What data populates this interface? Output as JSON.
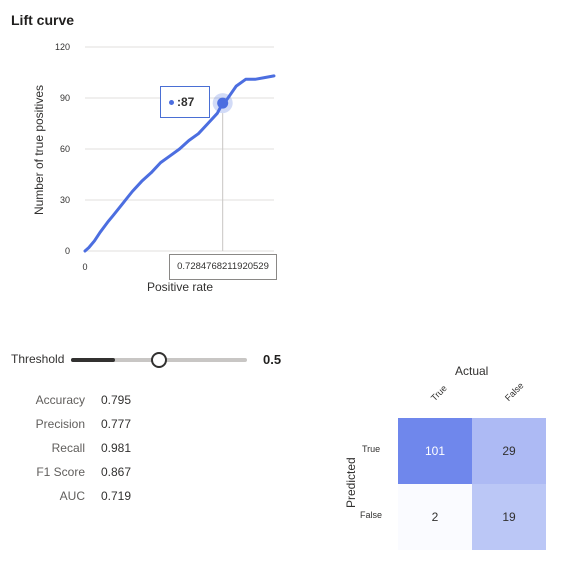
{
  "chart_data": [
    {
      "type": "line",
      "title": "Lift curve",
      "xlabel": "Positive rate",
      "ylabel": "Number of true positives",
      "ylim": [
        0,
        120
      ],
      "xlim": [
        0,
        1
      ],
      "yticks": [
        "0",
        "30",
        "60",
        "90",
        "120"
      ],
      "xticks": [
        "0"
      ],
      "grid": true,
      "color": "#4c6ee0",
      "series": [
        {
          "x": [
            0,
            0.02,
            0.05,
            0.08,
            0.12,
            0.15,
            0.2,
            0.25,
            0.3,
            0.35,
            0.4,
            0.45,
            0.5,
            0.55,
            0.6,
            0.65,
            0.7,
            0.7284768211920529,
            0.75,
            0.8,
            0.85,
            0.9,
            0.95,
            1.0
          ],
          "y": [
            0,
            2,
            6,
            11,
            17,
            21,
            28,
            35,
            41,
            46,
            52,
            56,
            60,
            65,
            69,
            75,
            81,
            87,
            89,
            97,
            101,
            101,
            102,
            103
          ]
        }
      ],
      "hover": {
        "x_label": "0.7284768211920529",
        "y_label": "87",
        "y_prefix": ":"
      }
    },
    {
      "type": "heatmap",
      "title": "Actual",
      "ylabel": "Predicted",
      "columns": [
        "True",
        "False"
      ],
      "rows": [
        "True",
        "False"
      ],
      "values": [
        [
          101,
          29
        ],
        [
          2,
          19
        ]
      ]
    }
  ],
  "threshold": {
    "label": "Threshold",
    "value": "0.5",
    "fraction": 0.5
  },
  "metrics": [
    {
      "name": "Accuracy",
      "value": "0.795"
    },
    {
      "name": "Precision",
      "value": "0.777"
    },
    {
      "name": "Recall",
      "value": "0.981"
    },
    {
      "name": "F1 Score",
      "value": "0.867"
    },
    {
      "name": "AUC",
      "value": "0.719"
    }
  ]
}
